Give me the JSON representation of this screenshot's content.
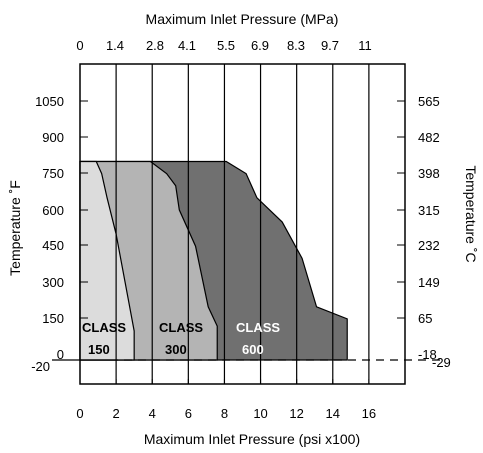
{
  "chart_data": {
    "type": "area",
    "title": "",
    "top_axis": {
      "label": "Maximum Inlet Pressure (MPa)",
      "ticks": [
        "0",
        "1.4",
        "2.8",
        "4.1",
        "5.5",
        "6.9",
        "8.3",
        "9.7",
        "11"
      ]
    },
    "bottom_axis": {
      "label": "Maximum Inlet Pressure (psi x100)",
      "ticks": [
        "0",
        "2",
        "4",
        "6",
        "8",
        "10",
        "12",
        "14",
        "16"
      ],
      "range": [
        0,
        18
      ]
    },
    "left_axis": {
      "label": "Temperature ˚F",
      "ticks": [
        "1050",
        "900",
        "750",
        "600",
        "450",
        "300",
        "150",
        "0",
        "-20"
      ],
      "range": [
        -20,
        1120
      ]
    },
    "right_axis": {
      "label": "Temperature ˚C",
      "ticks": [
        "565",
        "482",
        "398",
        "315",
        "232",
        "149",
        "65",
        "-18",
        "-29"
      ]
    },
    "grid": "vertical",
    "series": [
      {
        "name": "CLASS 600",
        "label_line1": "CLASS",
        "label_line2": "600",
        "color": "#707070",
        "label_color": "#ffffff",
        "x": [
          14.8,
          14.8,
          13.1,
          12.3,
          11.2,
          9.8,
          9.2,
          8.1,
          4.3
        ],
        "y": [
          -20,
          150,
          200,
          400,
          550,
          650,
          750,
          800,
          800
        ]
      },
      {
        "name": "CLASS 300",
        "label_line1": "CLASS",
        "label_line2": "300",
        "color": "#b4b4b4",
        "label_color": "#000000",
        "x": [
          7.6,
          7.6,
          7.1,
          6.4,
          5.5,
          5.3,
          4.8,
          3.9
        ],
        "y": [
          -20,
          120,
          200,
          450,
          600,
          700,
          750,
          800
        ]
      },
      {
        "name": "CLASS 150",
        "label_line1": "CLASS",
        "label_line2": "150",
        "color": "#dcdcdc",
        "label_color": "#000000",
        "x": [
          3.0,
          3.0,
          2.5,
          2.0,
          1.5,
          1.2,
          0.9
        ],
        "y": [
          -20,
          100,
          300,
          500,
          650,
          750,
          800
        ]
      }
    ]
  }
}
